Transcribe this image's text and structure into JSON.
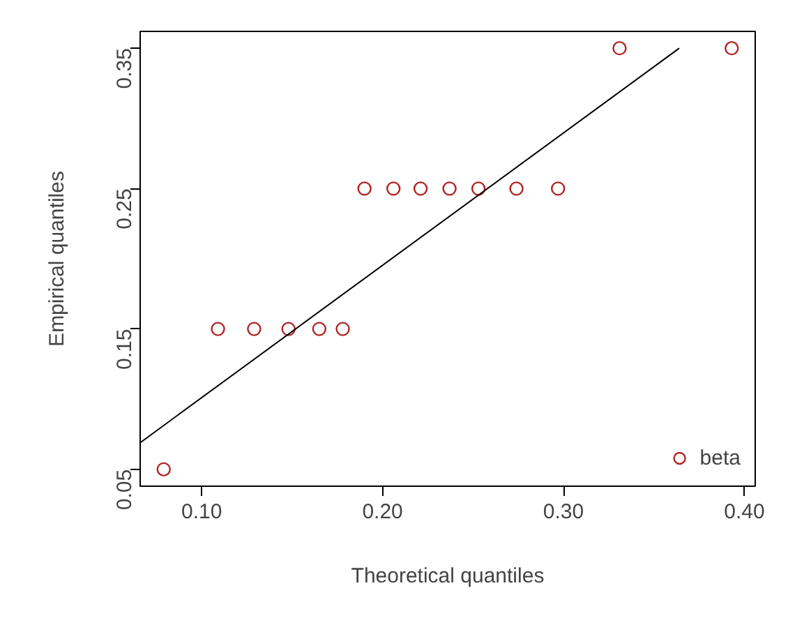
{
  "chart_data": {
    "type": "scatter",
    "xlabel": "Theoretical quantiles",
    "ylabel": "Empirical quantiles",
    "xlim": [
      0.066,
      0.406
    ],
    "ylim": [
      0.038,
      0.362
    ],
    "xticks": [
      {
        "value": 0.1,
        "label": "0.10"
      },
      {
        "value": 0.2,
        "label": "0.20"
      },
      {
        "value": 0.3,
        "label": "0.30"
      },
      {
        "value": 0.4,
        "label": "0.40"
      }
    ],
    "yticks": [
      0.05,
      0.15,
      0.25,
      0.35
    ],
    "grid": false,
    "legend": "bottom right",
    "series": [
      {
        "name": "beta",
        "marker": "circle",
        "color": "#b22222",
        "x": [
          0.079,
          0.109,
          0.129,
          0.148,
          0.165,
          0.178,
          0.19,
          0.206,
          0.221,
          0.237,
          0.253,
          0.274,
          0.297,
          0.331,
          0.393
        ],
        "values": [
          0.05,
          0.15,
          0.15,
          0.15,
          0.15,
          0.15,
          0.25,
          0.25,
          0.25,
          0.25,
          0.25,
          0.25,
          0.25,
          0.35,
          0.35
        ]
      },
      {
        "type": "line",
        "color": "#000000",
        "line_style": "solid",
        "x": [
          0.066,
          0.364
        ],
        "values": [
          0.069,
          0.35
        ]
      }
    ]
  }
}
